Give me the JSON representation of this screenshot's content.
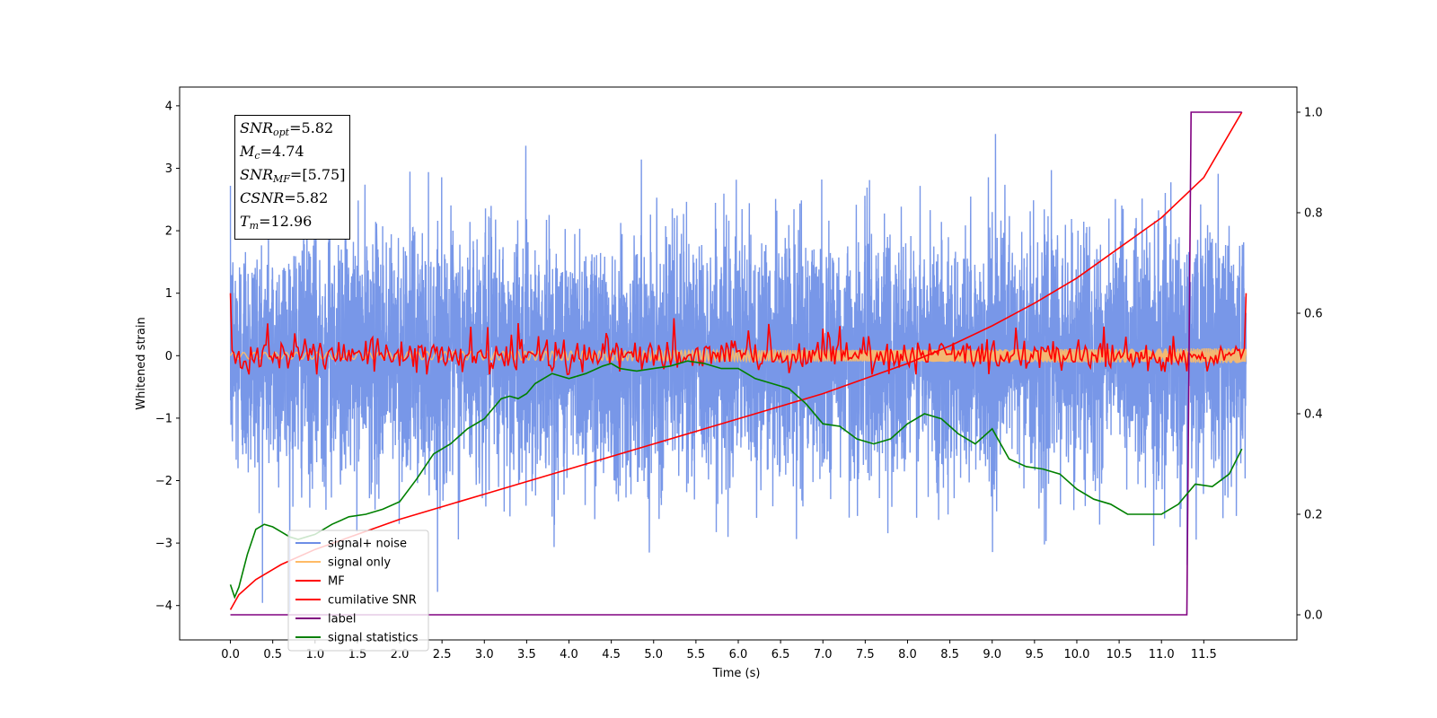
{
  "chart_data": {
    "type": "line",
    "xlabel": "Time (s)",
    "ylabel": "Whitened strain",
    "xlim": [
      -0.6,
      12.6
    ],
    "ylim": [
      -4.55,
      4.3
    ],
    "ylim_right": [
      -0.05,
      1.05
    ],
    "x_ticks": [
      "0.0",
      "0.5",
      "1.0",
      "1.5",
      "2.0",
      "2.5",
      "3.0",
      "3.5",
      "4.0",
      "4.5",
      "5.0",
      "5.5",
      "6.0",
      "6.5",
      "7.0",
      "7.5",
      "8.0",
      "8.5",
      "9.0",
      "9.5",
      "10.0",
      "10.5",
      "11.0",
      "11.5"
    ],
    "y_ticks_left": [
      "4",
      "3",
      "2",
      "1",
      "0",
      "−1",
      "−2",
      "−3",
      "−4"
    ],
    "y_ticks_right": [
      "1.0",
      "0.8",
      "0.6",
      "0.4",
      "0.2",
      "0.0"
    ],
    "legend_position": "lower-left",
    "grid": false,
    "annotation": [
      {
        "sym": "SNR",
        "sub": "opt",
        "val": "=5.82"
      },
      {
        "sym": "M",
        "sub": "c",
        "val": "=4.74"
      },
      {
        "sym": "SNR",
        "sub": "MF",
        "val": "=[5.75]"
      },
      {
        "sym": "CSNR",
        "sub": "",
        "val": "=5.82"
      },
      {
        "sym": "T",
        "sub": "m",
        "val": "=12.96"
      }
    ],
    "series": [
      {
        "name": "signal+ noise",
        "color": "#6d8ee6",
        "axis": "left",
        "duration": 12.0,
        "sample_rate_hz": 512,
        "envelope": [
          -4.15,
          3.95
        ]
      },
      {
        "name": "signal only",
        "color": "#ffbb66",
        "axis": "left",
        "duration": 12.0,
        "amplitude": 0.1
      },
      {
        "name": "MF",
        "color": "#ff0000",
        "axis": "left",
        "duration": 12.0,
        "start_value": 1.0,
        "end_value": 1.0,
        "typical_range": [
          -0.3,
          0.6
        ]
      },
      {
        "name": "cumilative SNR",
        "color": "#ff0000",
        "axis": "right",
        "x": [
          0.0,
          0.1,
          0.3,
          0.6,
          1.0,
          1.5,
          2.0,
          2.5,
          3.0,
          3.5,
          4.0,
          4.5,
          5.0,
          5.5,
          6.0,
          6.5,
          7.0,
          7.5,
          8.0,
          8.5,
          9.0,
          9.5,
          10.0,
          10.5,
          11.0,
          11.5,
          11.95
        ],
        "y": [
          0.01,
          0.04,
          0.07,
          0.1,
          0.13,
          0.16,
          0.19,
          0.215,
          0.24,
          0.265,
          0.29,
          0.315,
          0.34,
          0.365,
          0.39,
          0.415,
          0.44,
          0.47,
          0.5,
          0.535,
          0.575,
          0.62,
          0.67,
          0.73,
          0.79,
          0.87,
          1.0
        ]
      },
      {
        "name": "label",
        "color": "#800080",
        "axis": "right",
        "x": [
          0.0,
          11.3,
          11.35,
          11.95
        ],
        "y": [
          0.0,
          0.0,
          1.0,
          1.0
        ]
      },
      {
        "name": "signal statistics",
        "color": "#008000",
        "axis": "right",
        "x": [
          0.0,
          0.05,
          0.1,
          0.2,
          0.3,
          0.4,
          0.5,
          0.6,
          0.7,
          0.8,
          0.9,
          1.0,
          1.2,
          1.4,
          1.6,
          1.8,
          2.0,
          2.2,
          2.4,
          2.6,
          2.8,
          3.0,
          3.2,
          3.3,
          3.4,
          3.5,
          3.6,
          3.7,
          3.8,
          3.9,
          4.0,
          4.2,
          4.4,
          4.5,
          4.6,
          4.8,
          5.0,
          5.2,
          5.4,
          5.6,
          5.8,
          6.0,
          6.2,
          6.4,
          6.6,
          6.8,
          7.0,
          7.2,
          7.4,
          7.6,
          7.8,
          8.0,
          8.2,
          8.4,
          8.6,
          8.8,
          9.0,
          9.2,
          9.4,
          9.6,
          9.8,
          10.0,
          10.2,
          10.4,
          10.6,
          10.8,
          11.0,
          11.2,
          11.4,
          11.6,
          11.8,
          11.95
        ],
        "y": [
          0.06,
          0.035,
          0.055,
          0.12,
          0.17,
          0.18,
          0.175,
          0.165,
          0.155,
          0.15,
          0.155,
          0.16,
          0.18,
          0.195,
          0.2,
          0.21,
          0.225,
          0.27,
          0.32,
          0.34,
          0.37,
          0.39,
          0.43,
          0.435,
          0.43,
          0.44,
          0.46,
          0.47,
          0.48,
          0.475,
          0.47,
          0.48,
          0.495,
          0.5,
          0.49,
          0.485,
          0.49,
          0.495,
          0.505,
          0.5,
          0.49,
          0.49,
          0.47,
          0.46,
          0.45,
          0.42,
          0.38,
          0.375,
          0.35,
          0.34,
          0.35,
          0.38,
          0.4,
          0.39,
          0.36,
          0.34,
          0.37,
          0.31,
          0.295,
          0.29,
          0.28,
          0.25,
          0.23,
          0.22,
          0.2,
          0.2,
          0.2,
          0.22,
          0.26,
          0.255,
          0.28,
          0.33
        ]
      }
    ]
  }
}
